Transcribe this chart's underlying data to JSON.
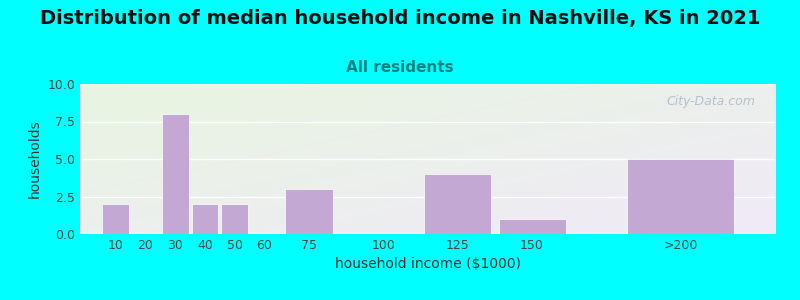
{
  "title": "Distribution of median household income in Nashville, KS in 2021",
  "subtitle": "All residents",
  "xlabel": "household income ($1000)",
  "ylabel": "households",
  "bar_labels": [
    "10",
    "20",
    "30",
    "40",
    "50",
    "60",
    "75",
    "100",
    "125",
    "150",
    ">200"
  ],
  "bar_values": [
    2,
    0,
    8,
    2,
    2,
    0,
    3,
    0,
    4,
    1,
    5
  ],
  "bar_color": "#C4A8D4",
  "background_color": "#00FFFF",
  "plot_bg_color_topleft": "#e8f5e0",
  "plot_bg_color_bottomright": "#f0eaf8",
  "ylim": [
    0,
    10
  ],
  "yticks": [
    0,
    2.5,
    5,
    7.5,
    10
  ],
  "title_fontsize": 14,
  "subtitle_fontsize": 11,
  "subtitle_color": "#008080",
  "axis_label_fontsize": 10,
  "tick_fontsize": 9,
  "watermark_text": "City-Data.com",
  "watermark_color": "#b0b8c8"
}
